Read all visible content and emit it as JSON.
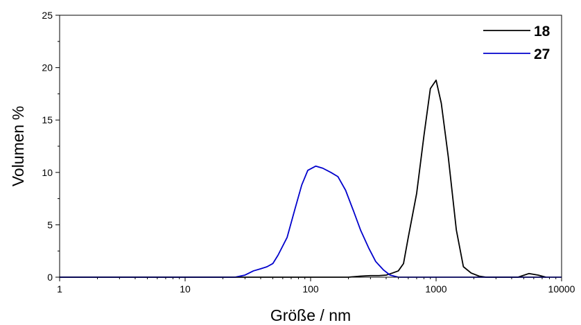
{
  "chart_data": {
    "type": "line",
    "title": "",
    "xlabel": "Größe / nm",
    "ylabel": "Volumen %",
    "xscale": "log",
    "xlim": [
      1,
      10000
    ],
    "ylim": [
      0,
      25
    ],
    "xticks": [
      1,
      10,
      100,
      1000,
      10000
    ],
    "xtick_labels": [
      "1",
      "10",
      "100",
      "1000",
      "10000"
    ],
    "yticks": [
      0,
      5,
      10,
      15,
      20,
      25
    ],
    "ytick_labels": [
      "0",
      "5",
      "10",
      "15",
      "20",
      "25"
    ],
    "grid": false,
    "legend_position": "top-right",
    "series": [
      {
        "name": "18",
        "color": "#000000",
        "x": [
          1,
          100,
          200,
          250,
          300,
          350,
          400,
          450,
          500,
          550,
          600,
          700,
          800,
          900,
          1000,
          1100,
          1250,
          1450,
          1650,
          1900,
          2200,
          2500,
          2900,
          3500,
          4500,
          5500,
          6500,
          7500
        ],
        "y": [
          0,
          0,
          0,
          0.1,
          0.15,
          0.15,
          0.2,
          0.4,
          0.6,
          1.3,
          3.8,
          8.0,
          13.5,
          18.0,
          18.8,
          16.6,
          11.5,
          4.5,
          1.0,
          0.4,
          0.1,
          0,
          0,
          0,
          0,
          0.35,
          0.2,
          0
        ]
      },
      {
        "name": "27",
        "color": "#0000cc",
        "x": [
          1,
          25,
          30,
          35,
          40,
          45,
          50,
          55,
          65,
          75,
          85,
          95,
          110,
          125,
          145,
          165,
          190,
          220,
          250,
          290,
          330,
          380,
          430,
          500,
          600,
          10000
        ],
        "y": [
          0,
          0,
          0.2,
          0.6,
          0.8,
          1.0,
          1.3,
          2.1,
          3.8,
          6.5,
          8.8,
          10.2,
          10.6,
          10.4,
          10.0,
          9.6,
          8.3,
          6.3,
          4.5,
          2.8,
          1.5,
          0.7,
          0.2,
          0,
          0,
          0
        ]
      }
    ]
  }
}
